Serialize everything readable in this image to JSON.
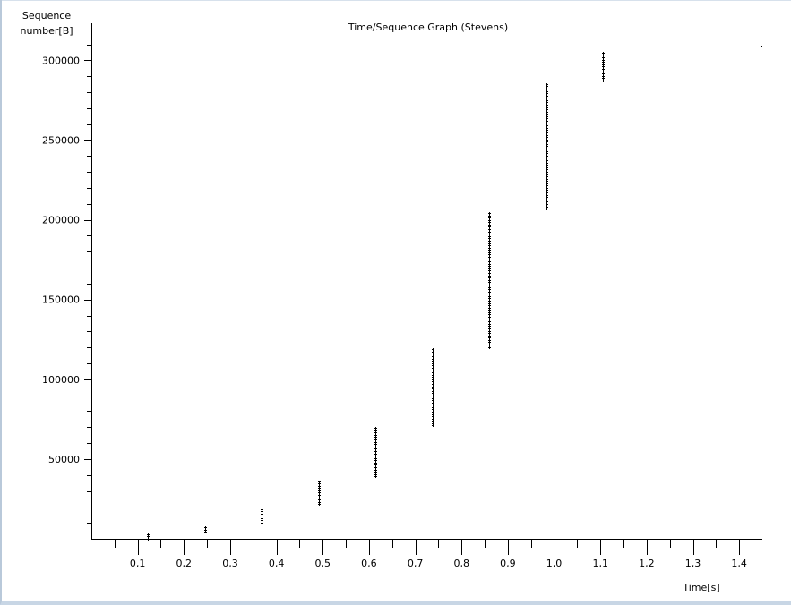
{
  "chart_data": {
    "type": "scatter",
    "title": "Time/Sequence Graph (Stevens)",
    "ylabel_line1": "Sequence",
    "ylabel_line2": "number[B]",
    "xlabel": "Time[s]",
    "xlim": [
      0.0,
      1.45
    ],
    "ylim": [
      0,
      312000
    ],
    "grid": false,
    "x_ticks": [
      "0,1",
      "0,2",
      "0,3",
      "0,4",
      "0,5",
      "0,6",
      "0,7",
      "0,8",
      "0,9",
      "1,0",
      "1,1",
      "1,2",
      "1,3",
      "1,4"
    ],
    "x_tick_values": [
      0.1,
      0.2,
      0.3,
      0.4,
      0.5,
      0.6,
      0.7,
      0.8,
      0.9,
      1.0,
      1.1,
      1.2,
      1.3,
      1.4
    ],
    "y_ticks": [
      "50000",
      "100000",
      "150000",
      "200000",
      "250000",
      "300000"
    ],
    "y_tick_values": [
      50000,
      100000,
      150000,
      200000,
      250000,
      300000
    ],
    "bursts": [
      {
        "x": 0.122,
        "y_from": 0,
        "y_to": 2900
      },
      {
        "x": 0.245,
        "y_from": 4400,
        "y_to": 8700
      },
      {
        "x": 0.368,
        "y_from": 10100,
        "y_to": 20300
      },
      {
        "x": 0.491,
        "y_from": 21700,
        "y_to": 36200
      },
      {
        "x": 0.614,
        "y_from": 39100,
        "y_to": 69600
      },
      {
        "x": 0.737,
        "y_from": 71000,
        "y_to": 118800
      },
      {
        "x": 0.86,
        "y_from": 120300,
        "y_to": 205600
      },
      {
        "x": 0.983,
        "y_from": 207000,
        "y_to": 285900
      },
      {
        "x": 1.105,
        "y_from": 287400,
        "y_to": 304800
      }
    ],
    "segment_bytes": 1448
  }
}
